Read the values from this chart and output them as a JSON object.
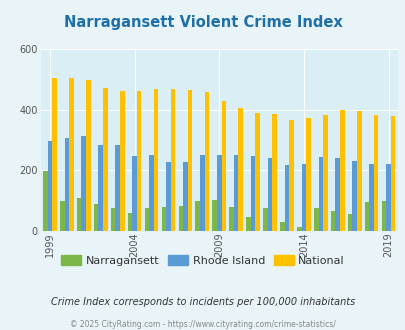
{
  "title": "Narragansett Violent Crime Index",
  "years": [
    1999,
    2000,
    2001,
    2002,
    2003,
    2004,
    2005,
    2006,
    2007,
    2008,
    2009,
    2010,
    2011,
    2012,
    2013,
    2014,
    2015,
    2016,
    2017,
    2018,
    2019
  ],
  "narragansett": [
    197,
    100,
    108,
    90,
    75,
    58,
    75,
    80,
    82,
    100,
    102,
    80,
    47,
    75,
    30,
    12,
    75,
    65,
    55,
    95,
    100
  ],
  "rhode_island": [
    298,
    308,
    315,
    285,
    285,
    248,
    250,
    227,
    227,
    252,
    250,
    250,
    248,
    242,
    218,
    220,
    245,
    240,
    232,
    220,
    220
  ],
  "national": [
    507,
    507,
    500,
    473,
    462,
    463,
    468,
    470,
    467,
    458,
    430,
    406,
    390,
    387,
    368,
    375,
    383,
    400,
    397,
    383,
    379
  ],
  "narragansett_color": "#7db74a",
  "rhode_island_color": "#5b9bd5",
  "national_color": "#ffc000",
  "bg_color": "#e8f4f8",
  "plot_bg_color": "#daeef5",
  "title_color": "#1f6fa8",
  "ylabel_max": 600,
  "yticks": [
    0,
    200,
    400,
    600
  ],
  "subtitle": "Crime Index corresponds to incidents per 100,000 inhabitants",
  "footer": "© 2025 CityRating.com - https://www.cityrating.com/crime-statistics/",
  "bar_width": 0.27,
  "xtick_years": [
    1999,
    2004,
    2009,
    2014,
    2019
  ]
}
